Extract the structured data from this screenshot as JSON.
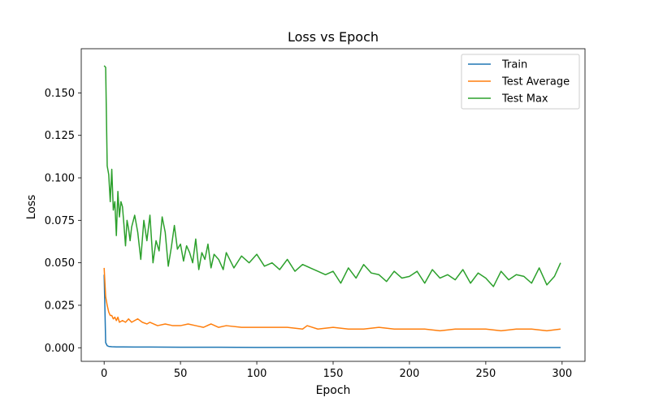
{
  "chart_data": {
    "type": "line",
    "title": "Loss vs Epoch",
    "xlabel": "Epoch",
    "ylabel": "Loss",
    "xlim": [
      -15,
      315
    ],
    "ylim": [
      -0.008,
      0.176
    ],
    "xticks": [
      0,
      50,
      100,
      150,
      200,
      250,
      300
    ],
    "yticks": [
      0.0,
      0.025,
      0.05,
      0.075,
      0.1,
      0.125,
      0.15
    ],
    "xtick_labels": [
      "0",
      "50",
      "100",
      "150",
      "200",
      "250",
      "300"
    ],
    "ytick_labels": [
      "0.000",
      "0.025",
      "0.050",
      "0.075",
      "0.100",
      "0.125",
      "0.150"
    ],
    "grid": false,
    "legend_position": "top-right",
    "series": [
      {
        "name": "Train",
        "color": "#1f77b4",
        "x": [
          0,
          1,
          2,
          3,
          5,
          8,
          12,
          20,
          30,
          50,
          75,
          100,
          150,
          200,
          250,
          299
        ],
        "y": [
          0.043,
          0.003,
          0.0012,
          0.0008,
          0.0006,
          0.0005,
          0.0005,
          0.0004,
          0.0004,
          0.0003,
          0.0003,
          0.0002,
          0.0002,
          0.0001,
          0.0001,
          0.0001
        ]
      },
      {
        "name": "Test Average",
        "color": "#ff7f0e",
        "x": [
          0,
          1,
          2,
          3,
          4,
          5,
          6,
          7,
          8,
          9,
          10,
          12,
          14,
          16,
          18,
          20,
          22,
          25,
          28,
          30,
          35,
          40,
          45,
          50,
          55,
          60,
          65,
          70,
          75,
          80,
          90,
          100,
          110,
          120,
          130,
          133,
          140,
          150,
          160,
          170,
          180,
          190,
          200,
          210,
          220,
          230,
          240,
          250,
          260,
          270,
          280,
          290,
          299
        ],
        "y": [
          0.047,
          0.03,
          0.025,
          0.021,
          0.019,
          0.019,
          0.017,
          0.018,
          0.016,
          0.018,
          0.015,
          0.016,
          0.015,
          0.017,
          0.015,
          0.016,
          0.017,
          0.015,
          0.014,
          0.015,
          0.013,
          0.014,
          0.013,
          0.013,
          0.014,
          0.013,
          0.012,
          0.014,
          0.012,
          0.013,
          0.012,
          0.012,
          0.012,
          0.012,
          0.011,
          0.013,
          0.011,
          0.012,
          0.011,
          0.011,
          0.012,
          0.011,
          0.011,
          0.011,
          0.01,
          0.011,
          0.011,
          0.011,
          0.01,
          0.011,
          0.011,
          0.01,
          0.011
        ]
      },
      {
        "name": "Test Max",
        "color": "#2ca02c",
        "x": [
          0,
          1,
          2,
          3,
          4,
          5,
          6,
          7,
          8,
          9,
          10,
          11,
          12,
          13,
          14,
          15,
          16,
          17,
          18,
          20,
          22,
          24,
          26,
          28,
          30,
          32,
          34,
          36,
          38,
          40,
          42,
          44,
          46,
          48,
          50,
          52,
          54,
          56,
          58,
          60,
          62,
          64,
          66,
          68,
          70,
          72,
          75,
          78,
          80,
          85,
          90,
          95,
          100,
          105,
          110,
          115,
          120,
          125,
          130,
          135,
          140,
          145,
          150,
          155,
          160,
          165,
          170,
          175,
          180,
          185,
          190,
          195,
          200,
          205,
          210,
          215,
          220,
          225,
          230,
          235,
          240,
          245,
          250,
          255,
          260,
          265,
          270,
          275,
          280,
          285,
          290,
          295,
          299
        ],
        "y": [
          0.166,
          0.165,
          0.107,
          0.102,
          0.086,
          0.105,
          0.081,
          0.086,
          0.066,
          0.092,
          0.077,
          0.086,
          0.083,
          0.072,
          0.06,
          0.075,
          0.07,
          0.063,
          0.071,
          0.078,
          0.068,
          0.052,
          0.075,
          0.063,
          0.078,
          0.05,
          0.063,
          0.057,
          0.077,
          0.068,
          0.048,
          0.059,
          0.072,
          0.058,
          0.061,
          0.051,
          0.06,
          0.056,
          0.05,
          0.064,
          0.046,
          0.056,
          0.052,
          0.061,
          0.047,
          0.055,
          0.052,
          0.046,
          0.056,
          0.047,
          0.054,
          0.05,
          0.055,
          0.048,
          0.05,
          0.046,
          0.052,
          0.045,
          0.049,
          0.047,
          0.045,
          0.043,
          0.045,
          0.038,
          0.047,
          0.041,
          0.049,
          0.044,
          0.043,
          0.039,
          0.045,
          0.041,
          0.042,
          0.045,
          0.038,
          0.046,
          0.041,
          0.043,
          0.04,
          0.046,
          0.038,
          0.044,
          0.041,
          0.036,
          0.045,
          0.04,
          0.043,
          0.042,
          0.038,
          0.047,
          0.037,
          0.042,
          0.05
        ]
      }
    ]
  }
}
